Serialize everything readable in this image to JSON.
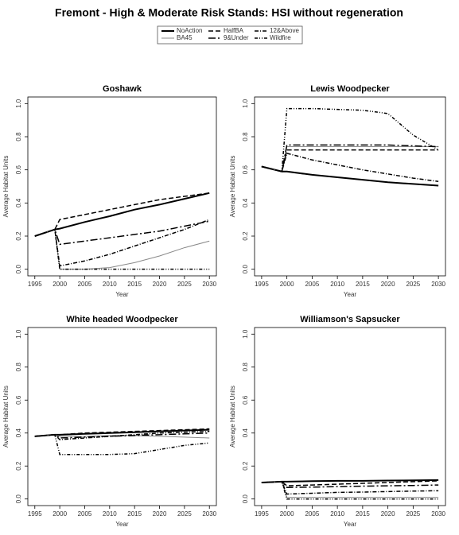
{
  "title": "Fremont  - High & Moderate Risk Stands: HSI without regeneration",
  "chart_data": [
    {
      "type": "line",
      "title": "Goshawk",
      "x_label": "Year",
      "y_label": "Average Habitat Units",
      "x": [
        1995,
        1999,
        2000,
        2005,
        2010,
        2015,
        2020,
        2025,
        2030
      ],
      "xlim": [
        1993.6,
        2031.4
      ],
      "xticks": [
        1995,
        2000,
        2005,
        2010,
        2015,
        2020,
        2025,
        2030
      ],
      "ylim": [
        -0.04,
        1.04
      ],
      "yticks": [
        {
          "value": 0,
          "label": "0.0"
        },
        {
          "value": 0.2,
          "label": "0.2"
        },
        {
          "value": 0.4,
          "label": "0.4"
        },
        {
          "value": 0.6,
          "label": "0.6"
        },
        {
          "value": 0.8,
          "label": "0.8"
        },
        {
          "value": 1,
          "label": "1.0"
        }
      ],
      "series": [
        {
          "name": "NoAction",
          "color": "#000000",
          "width": 2,
          "dash": "none",
          "values": [
            0.2,
            0.24,
            0.245,
            0.285,
            0.32,
            0.36,
            0.39,
            0.425,
            0.46
          ]
        },
        {
          "name": "BA45",
          "color": "#888888",
          "width": 1,
          "dash": "none",
          "values": [
            0.2,
            0.24,
            0,
            0,
            0.01,
            0.04,
            0.08,
            0.13,
            0.17
          ]
        },
        {
          "name": "HalfBA",
          "color": "#000000",
          "width": 1.5,
          "dash": "6,3",
          "values": [
            0.2,
            0.24,
            0.3,
            0.33,
            0.36,
            0.39,
            0.42,
            0.44,
            0.46
          ]
        },
        {
          "name": "9&Under",
          "color": "#000000",
          "width": 1.5,
          "dash": "9,3,2,3",
          "values": [
            0.2,
            0.24,
            0.15,
            0.17,
            0.19,
            0.21,
            0.23,
            0.26,
            0.29
          ]
        },
        {
          "name": "12&Above",
          "color": "#000000",
          "width": 1.5,
          "dash": "5,2,1,2",
          "values": [
            0.2,
            0.24,
            0.02,
            0.05,
            0.09,
            0.14,
            0.19,
            0.24,
            0.3
          ]
        },
        {
          "name": "Wildfire",
          "color": "#000000",
          "width": 1.5,
          "dash": "4,2,1,2,1,2",
          "values": [
            0.2,
            0.24,
            0,
            0,
            0,
            0,
            0,
            0,
            0
          ]
        }
      ]
    },
    {
      "type": "line",
      "title": "Lewis Woodpecker",
      "x_label": "Year",
      "y_label": "Average Habitat Units",
      "x": [
        1995,
        1999,
        2000,
        2005,
        2010,
        2015,
        2020,
        2025,
        2030
      ],
      "xlim": [
        1993.6,
        2031.4
      ],
      "xticks": [
        1995,
        2000,
        2005,
        2010,
        2015,
        2020,
        2025,
        2030
      ],
      "ylim": [
        -0.04,
        1.04
      ],
      "yticks": [
        {
          "value": 0,
          "label": "0.0"
        },
        {
          "value": 0.2,
          "label": "0.2"
        },
        {
          "value": 0.4,
          "label": "0.4"
        },
        {
          "value": 0.6,
          "label": "0.6"
        },
        {
          "value": 0.8,
          "label": "0.8"
        },
        {
          "value": 1,
          "label": "1.0"
        }
      ],
      "series": [
        {
          "name": "NoAction",
          "color": "#000000",
          "width": 2,
          "dash": "none",
          "values": [
            0.62,
            0.59,
            0.59,
            0.57,
            0.555,
            0.54,
            0.525,
            0.515,
            0.505
          ]
        },
        {
          "name": "BA45",
          "color": "#888888",
          "width": 1,
          "dash": "none",
          "values": [
            0.62,
            0.59,
            0.74,
            0.74,
            0.74,
            0.74,
            0.74,
            0.74,
            0.74
          ]
        },
        {
          "name": "HalfBA",
          "color": "#000000",
          "width": 1.5,
          "dash": "6,3",
          "values": [
            0.62,
            0.59,
            0.72,
            0.72,
            0.72,
            0.72,
            0.72,
            0.72,
            0.72
          ]
        },
        {
          "name": "9&Under",
          "color": "#000000",
          "width": 1.5,
          "dash": "9,3,2,3",
          "values": [
            0.62,
            0.59,
            0.75,
            0.75,
            0.75,
            0.75,
            0.75,
            0.745,
            0.74
          ]
        },
        {
          "name": "12&Above",
          "color": "#000000",
          "width": 1.5,
          "dash": "5,2,1,2",
          "values": [
            0.62,
            0.59,
            0.7,
            0.66,
            0.63,
            0.6,
            0.575,
            0.55,
            0.53
          ]
        },
        {
          "name": "Wildfire",
          "color": "#000000",
          "width": 1.5,
          "dash": "4,2,1,2,1,2",
          "values": [
            0.62,
            0.59,
            0.97,
            0.97,
            0.965,
            0.96,
            0.94,
            0.81,
            0.72
          ]
        }
      ]
    },
    {
      "type": "line",
      "title": "White headed Woodpecker",
      "x_label": "Year",
      "y_label": "Average Habitat Units",
      "x": [
        1995,
        1999,
        2000,
        2005,
        2010,
        2015,
        2020,
        2025,
        2030
      ],
      "xlim": [
        1993.6,
        2031.4
      ],
      "xticks": [
        1995,
        2000,
        2005,
        2010,
        2015,
        2020,
        2025,
        2030
      ],
      "ylim": [
        -0.04,
        1.04
      ],
      "yticks": [
        {
          "value": 0,
          "label": "0.0"
        },
        {
          "value": 0.2,
          "label": "0.2"
        },
        {
          "value": 0.4,
          "label": "0.4"
        },
        {
          "value": 0.6,
          "label": "0.6"
        },
        {
          "value": 0.8,
          "label": "0.8"
        },
        {
          "value": 1,
          "label": "1.0"
        }
      ],
      "series": [
        {
          "name": "NoAction",
          "color": "#000000",
          "width": 2,
          "dash": "none",
          "values": [
            0.38,
            0.39,
            0.39,
            0.395,
            0.4,
            0.405,
            0.41,
            0.415,
            0.42
          ]
        },
        {
          "name": "BA45",
          "color": "#888888",
          "width": 1,
          "dash": "none",
          "values": [
            0.38,
            0.39,
            0.38,
            0.38,
            0.385,
            0.385,
            0.38,
            0.375,
            0.37
          ]
        },
        {
          "name": "HalfBA",
          "color": "#000000",
          "width": 1.5,
          "dash": "6,3",
          "values": [
            0.38,
            0.39,
            0.39,
            0.4,
            0.405,
            0.41,
            0.415,
            0.42,
            0.425
          ]
        },
        {
          "name": "9&Under",
          "color": "#000000",
          "width": 1.5,
          "dash": "9,3,2,3",
          "values": [
            0.38,
            0.39,
            0.37,
            0.375,
            0.38,
            0.385,
            0.39,
            0.395,
            0.4
          ]
        },
        {
          "name": "12&Above",
          "color": "#000000",
          "width": 1.5,
          "dash": "5,2,1,2",
          "values": [
            0.38,
            0.39,
            0.36,
            0.37,
            0.38,
            0.39,
            0.4,
            0.405,
            0.41
          ]
        },
        {
          "name": "Wildfire",
          "color": "#000000",
          "width": 1.5,
          "dash": "4,2,1,2,1,2",
          "values": [
            0.38,
            0.39,
            0.27,
            0.27,
            0.27,
            0.275,
            0.3,
            0.325,
            0.34
          ]
        }
      ]
    },
    {
      "type": "line",
      "title": "Williamson's Sapsucker",
      "x_label": "Year",
      "y_label": "Average Habitat Units",
      "x": [
        1995,
        1999,
        2000,
        2005,
        2010,
        2015,
        2020,
        2025,
        2030
      ],
      "xlim": [
        1993.6,
        2031.4
      ],
      "xticks": [
        1995,
        2000,
        2005,
        2010,
        2015,
        2020,
        2025,
        2030
      ],
      "ylim": [
        -0.04,
        1.04
      ],
      "yticks": [
        {
          "value": 0,
          "label": "0.0"
        },
        {
          "value": 0.2,
          "label": "0.2"
        },
        {
          "value": 0.4,
          "label": "0.4"
        },
        {
          "value": 0.6,
          "label": "0.6"
        },
        {
          "value": 0.8,
          "label": "0.8"
        },
        {
          "value": 1,
          "label": "1.0"
        }
      ],
      "series": [
        {
          "name": "NoAction",
          "color": "#000000",
          "width": 2,
          "dash": "none",
          "values": [
            0.1,
            0.105,
            0.105,
            0.108,
            0.11,
            0.11,
            0.112,
            0.113,
            0.115
          ]
        },
        {
          "name": "BA45",
          "color": "#888888",
          "width": 1,
          "dash": "none",
          "values": [
            0.1,
            0.105,
            0.01,
            0.01,
            0.01,
            0.01,
            0.01,
            0.01,
            0.01
          ]
        },
        {
          "name": "HalfBA",
          "color": "#000000",
          "width": 1.5,
          "dash": "6,3",
          "values": [
            0.1,
            0.105,
            0.08,
            0.085,
            0.09,
            0.095,
            0.1,
            0.105,
            0.11
          ]
        },
        {
          "name": "9&Under",
          "color": "#000000",
          "width": 1.5,
          "dash": "9,3,2,3",
          "values": [
            0.1,
            0.105,
            0.07,
            0.072,
            0.075,
            0.078,
            0.08,
            0.082,
            0.085
          ]
        },
        {
          "name": "12&Above",
          "color": "#000000",
          "width": 1.5,
          "dash": "5,2,1,2",
          "values": [
            0.1,
            0.105,
            0.03,
            0.035,
            0.04,
            0.042,
            0.045,
            0.048,
            0.05
          ]
        },
        {
          "name": "Wildfire",
          "color": "#000000",
          "width": 1.5,
          "dash": "4,2,1,2,1,2",
          "values": [
            0.1,
            0.105,
            0,
            0,
            0,
            0,
            0,
            0,
            0
          ]
        }
      ]
    }
  ]
}
